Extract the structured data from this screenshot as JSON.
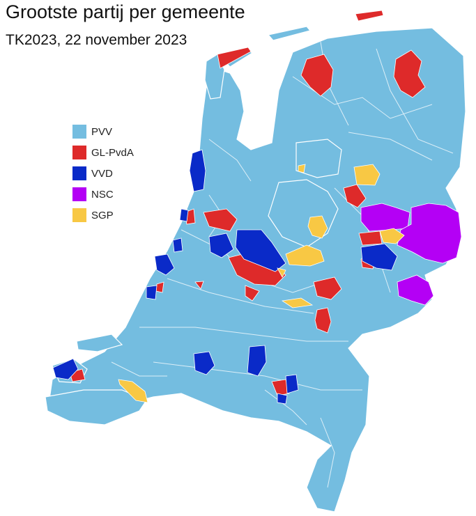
{
  "title": "Grootste partij per gemeente",
  "subtitle": "TK2023, 22 november 2023",
  "legend": [
    {
      "party": "PVV",
      "color": "#74bde0"
    },
    {
      "party": "GL-PvdA",
      "color": "#de2a2a"
    },
    {
      "party": "VVD",
      "color": "#0a2ac8"
    },
    {
      "party": "NSC",
      "color": "#b400f5"
    },
    {
      "party": "SGP",
      "color": "#f8c844"
    }
  ],
  "map": {
    "land_color": "#74bde0",
    "border_color": "#ffffff",
    "background_color": "#ffffff"
  }
}
